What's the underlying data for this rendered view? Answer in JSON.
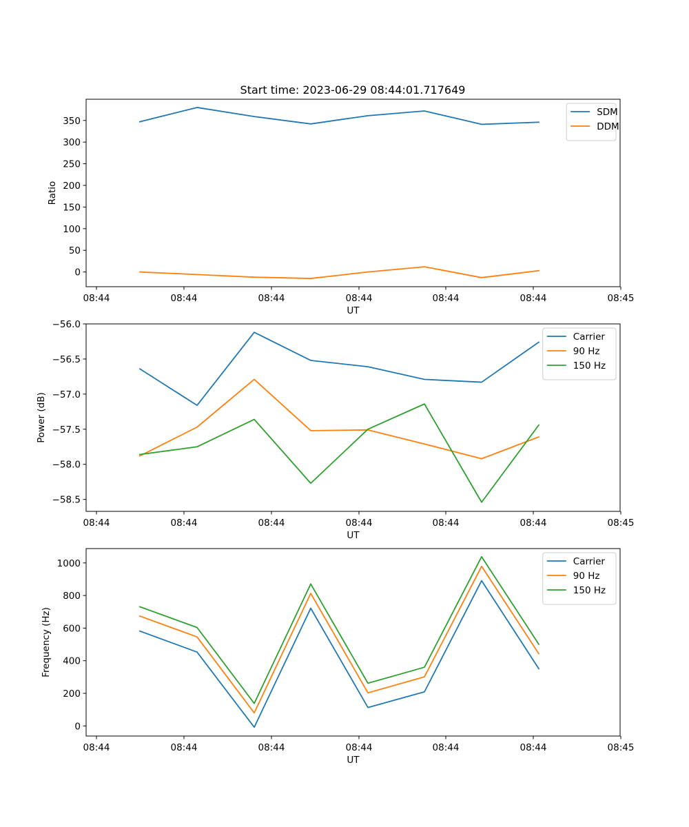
{
  "figure_title": "Start time: 2023-06-29 08:44:01.717649",
  "colors": {
    "blue": "#1f77b4",
    "orange": "#ff7f0e",
    "green": "#2ca02c"
  },
  "chart_data": [
    {
      "type": "line",
      "title": "Start time: 2023-06-29 08:44:01.717649",
      "xlabel": "UT",
      "ylabel": "Ratio",
      "x_tick_labels": [
        "08:44",
        "08:44",
        "08:44",
        "08:44",
        "08:44",
        "08:44",
        "08:45"
      ],
      "y_ticks": [
        0,
        50,
        100,
        150,
        200,
        250,
        300,
        350
      ],
      "ylim": [
        -34,
        399
      ],
      "legend_position": "upper right",
      "series": [
        {
          "name": "SDM",
          "color": "#1f77b4",
          "values": [
            347,
            380,
            359,
            342,
            361,
            372,
            341,
            346
          ]
        },
        {
          "name": "DDM",
          "color": "#ff7f0e",
          "values": [
            0,
            -6,
            -12,
            -15,
            0,
            12,
            -13,
            3
          ]
        }
      ]
    },
    {
      "type": "line",
      "xlabel": "UT",
      "ylabel": "Power (dB)",
      "x_tick_labels": [
        "08:44",
        "08:44",
        "08:44",
        "08:44",
        "08:44",
        "08:44",
        "08:45"
      ],
      "y_ticks": [
        -58.5,
        -58.0,
        -57.5,
        -57.0,
        -56.5,
        -56.0
      ],
      "y_tick_labels": [
        "−58.5",
        "−58.0",
        "−57.5",
        "−57.0",
        "−56.5",
        "−56.0"
      ],
      "ylim": [
        -58.67,
        -56.0
      ],
      "legend_position": "upper right",
      "series": [
        {
          "name": "Carrier",
          "color": "#1f77b4",
          "values": [
            -56.64,
            -57.16,
            -56.12,
            -56.52,
            -56.61,
            -56.79,
            -56.83,
            -56.26
          ]
        },
        {
          "name": "90 Hz",
          "color": "#ff7f0e",
          "values": [
            -57.88,
            -57.47,
            -56.79,
            -57.52,
            -57.51,
            -57.71,
            -57.92,
            -57.61
          ]
        },
        {
          "name": "150 Hz",
          "color": "#2ca02c",
          "values": [
            -57.86,
            -57.75,
            -57.36,
            -58.27,
            -57.5,
            -57.14,
            -58.54,
            -57.44
          ]
        }
      ]
    },
    {
      "type": "line",
      "xlabel": "UT",
      "ylabel": "Frequency (Hz)",
      "x_tick_labels": [
        "08:44",
        "08:44",
        "08:44",
        "08:44",
        "08:44",
        "08:44",
        "08:45"
      ],
      "y_ticks": [
        0,
        200,
        400,
        600,
        800,
        1000
      ],
      "ylim": [
        -62,
        1088
      ],
      "legend_position": "upper right",
      "series": [
        {
          "name": "Carrier",
          "color": "#1f77b4",
          "values": [
            582,
            453,
            -8,
            722,
            113,
            209,
            891,
            351
          ]
        },
        {
          "name": "90 Hz",
          "color": "#ff7f0e",
          "values": [
            674,
            546,
            80,
            813,
            203,
            301,
            979,
            443
          ]
        },
        {
          "name": "150 Hz",
          "color": "#2ca02c",
          "values": [
            731,
            604,
            138,
            871,
            262,
            360,
            1038,
            501
          ]
        }
      ]
    }
  ]
}
